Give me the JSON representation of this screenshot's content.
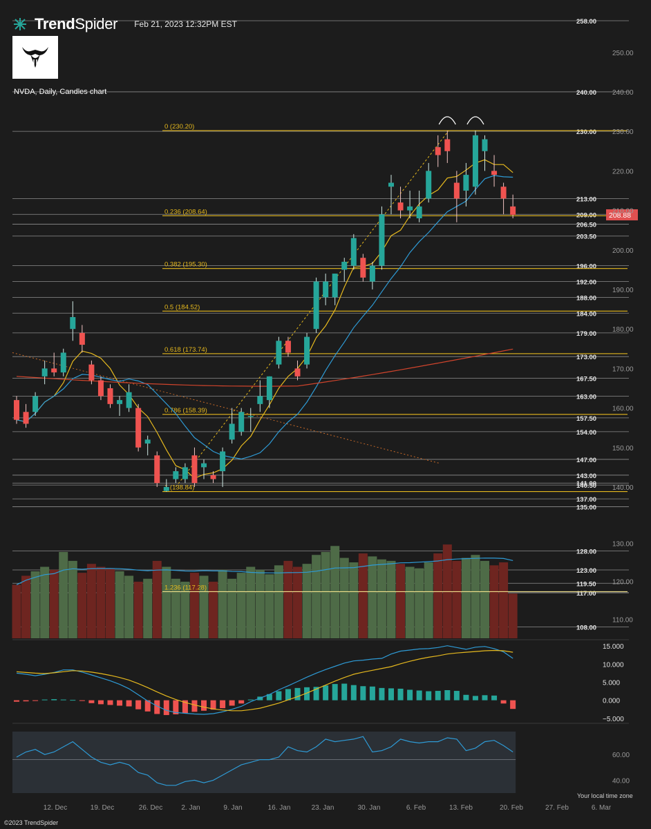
{
  "header": {
    "brand_bold": "Trend",
    "brand_light": "Spider",
    "timestamp": "Feb 21, 2023 12:32PM EST",
    "symbol_line": "NVDA, Daily, Candles chart",
    "copyright": "©2023 TrendSpider",
    "timezone_note": "Your local time zone"
  },
  "colors": {
    "background": "#1c1c1c",
    "up": "#26a69a",
    "down": "#ef5350",
    "fib": "#e6b91e",
    "sma_fast": "#e6b91e",
    "sma_mid": "#2e9bd6",
    "sma_slow": "#d0442c",
    "level": "#8e8e8e",
    "vol_up": "#4e6b47",
    "vol_down": "#6e2520",
    "last_price": "#e05050"
  },
  "chart_data": {
    "type": "candlestick",
    "symbol": "NVDA",
    "interval": "Daily",
    "ylim": [
      133,
      258
    ],
    "y_ticks": [
      "140.00",
      "150.00",
      "160.00",
      "170.00",
      "180.00",
      "190.00",
      "200.00",
      "210.00",
      "220.00",
      "230.00",
      "240.00",
      "250.00"
    ],
    "x_ticks": [
      "12. Dec",
      "19. Dec",
      "26. Dec",
      "2. Jan",
      "9. Jan",
      "16. Jan",
      "23. Jan",
      "30. Jan",
      "6. Feb",
      "13. Feb",
      "20. Feb",
      "27. Feb",
      "6. Mar"
    ],
    "candles": [
      {
        "date": "2022-12-05",
        "o": 162,
        "h": 163,
        "l": 156,
        "c": 157
      },
      {
        "date": "2022-12-06",
        "o": 159,
        "h": 161,
        "l": 155,
        "c": 156
      },
      {
        "date": "2022-12-07",
        "o": 159,
        "h": 164,
        "l": 158,
        "c": 163
      },
      {
        "date": "2022-12-08",
        "o": 168,
        "h": 172,
        "l": 166,
        "c": 170
      },
      {
        "date": "2022-12-09",
        "o": 170,
        "h": 174,
        "l": 168,
        "c": 169
      },
      {
        "date": "2022-12-12",
        "o": 169,
        "h": 175,
        "l": 168,
        "c": 174
      },
      {
        "date": "2022-12-13",
        "o": 180,
        "h": 187,
        "l": 177,
        "c": 183
      },
      {
        "date": "2022-12-14",
        "o": 179,
        "h": 181,
        "l": 174,
        "c": 176
      },
      {
        "date": "2022-12-15",
        "o": 171,
        "h": 172,
        "l": 166,
        "c": 167
      },
      {
        "date": "2022-12-16",
        "o": 167,
        "h": 168,
        "l": 162,
        "c": 163
      },
      {
        "date": "2022-12-19",
        "o": 165,
        "h": 166,
        "l": 160,
        "c": 161
      },
      {
        "date": "2022-12-20",
        "o": 161,
        "h": 163,
        "l": 158,
        "c": 162
      },
      {
        "date": "2022-12-21",
        "o": 160,
        "h": 166,
        "l": 159,
        "c": 164
      },
      {
        "date": "2022-12-22",
        "o": 160,
        "h": 161,
        "l": 149,
        "c": 150
      },
      {
        "date": "2022-12-23",
        "o": 151,
        "h": 153,
        "l": 148,
        "c": 152
      },
      {
        "date": "2022-12-27",
        "o": 148,
        "h": 149,
        "l": 140,
        "c": 141
      },
      {
        "date": "2022-12-28",
        "o": 139,
        "h": 142,
        "l": 138.8,
        "c": 140
      },
      {
        "date": "2022-12-29",
        "o": 142,
        "h": 145,
        "l": 141,
        "c": 144
      },
      {
        "date": "2022-12-30",
        "o": 142,
        "h": 146,
        "l": 141,
        "c": 145
      },
      {
        "date": "2023-01-03",
        "o": 148,
        "h": 150,
        "l": 140,
        "c": 141
      },
      {
        "date": "2023-01-04",
        "o": 145,
        "h": 147,
        "l": 142,
        "c": 146
      },
      {
        "date": "2023-01-05",
        "o": 143,
        "h": 144,
        "l": 141,
        "c": 142
      },
      {
        "date": "2023-01-06",
        "o": 144,
        "h": 150,
        "l": 140,
        "c": 149
      },
      {
        "date": "2023-01-09",
        "o": 152,
        "h": 160,
        "l": 151,
        "c": 156
      },
      {
        "date": "2023-01-10",
        "o": 154,
        "h": 160,
        "l": 153,
        "c": 159
      },
      {
        "date": "2023-01-11",
        "o": 158,
        "h": 160,
        "l": 154,
        "c": 158
      },
      {
        "date": "2023-01-12",
        "o": 161,
        "h": 167,
        "l": 159,
        "c": 163
      },
      {
        "date": "2023-01-13",
        "o": 162,
        "h": 168,
        "l": 160,
        "c": 168
      },
      {
        "date": "2023-01-17",
        "o": 171,
        "h": 178,
        "l": 170,
        "c": 177
      },
      {
        "date": "2023-01-18",
        "o": 177,
        "h": 178,
        "l": 173,
        "c": 174
      },
      {
        "date": "2023-01-19",
        "o": 170,
        "h": 172,
        "l": 167,
        "c": 168
      },
      {
        "date": "2023-01-20",
        "o": 171,
        "h": 179,
        "l": 170,
        "c": 178
      },
      {
        "date": "2023-01-23",
        "o": 180,
        "h": 193,
        "l": 179,
        "c": 192
      },
      {
        "date": "2023-01-24",
        "o": 188,
        "h": 194,
        "l": 186,
        "c": 192
      },
      {
        "date": "2023-01-25",
        "o": 188,
        "h": 194,
        "l": 186,
        "c": 194
      },
      {
        "date": "2023-01-26",
        "o": 195,
        "h": 198,
        "l": 192,
        "c": 197
      },
      {
        "date": "2023-01-27",
        "o": 196,
        "h": 204,
        "l": 195,
        "c": 203
      },
      {
        "date": "2023-01-30",
        "o": 198,
        "h": 199,
        "l": 192,
        "c": 193
      },
      {
        "date": "2023-01-31",
        "o": 192,
        "h": 197,
        "l": 190,
        "c": 196
      },
      {
        "date": "2023-02-01",
        "o": 196,
        "h": 211,
        "l": 195,
        "c": 209
      },
      {
        "date": "2023-02-02",
        "o": 216,
        "h": 219,
        "l": 209,
        "c": 217
      },
      {
        "date": "2023-02-03",
        "o": 212,
        "h": 216,
        "l": 208,
        "c": 210
      },
      {
        "date": "2023-02-06",
        "o": 210,
        "h": 215,
        "l": 208,
        "c": 211
      },
      {
        "date": "2023-02-07",
        "o": 208,
        "h": 215,
        "l": 207,
        "c": 211
      },
      {
        "date": "2023-02-08",
        "o": 213,
        "h": 222,
        "l": 212,
        "c": 220
      },
      {
        "date": "2023-02-09",
        "o": 226,
        "h": 229,
        "l": 221,
        "c": 224
      },
      {
        "date": "2023-02-10",
        "o": 228,
        "h": 230.2,
        "l": 222,
        "c": 225
      },
      {
        "date": "2023-02-13",
        "o": 217,
        "h": 220,
        "l": 207,
        "c": 213
      },
      {
        "date": "2023-02-14",
        "o": 215,
        "h": 222,
        "l": 211,
        "c": 219
      },
      {
        "date": "2023-02-15",
        "o": 216,
        "h": 230.2,
        "l": 214,
        "c": 229
      },
      {
        "date": "2023-02-16",
        "o": 225,
        "h": 229,
        "l": 220,
        "c": 228
      },
      {
        "date": "2023-02-17",
        "o": 220,
        "h": 224,
        "l": 216,
        "c": 219
      },
      {
        "date": "2023-02-21",
        "o": 216,
        "h": 217,
        "l": 209,
        "c": 213
      },
      {
        "date": "2023-02-22",
        "o": 211,
        "h": 214,
        "l": 208,
        "c": 208.88
      }
    ],
    "last_price": "208.88",
    "fib_levels": [
      {
        "label": "0 (230.20)",
        "value": 230.2
      },
      {
        "label": "0.236 (208.64)",
        "value": 208.64
      },
      {
        "label": "0.382 (195.30)",
        "value": 195.3
      },
      {
        "label": "0.5 (184.52)",
        "value": 184.52
      },
      {
        "label": "0.618 (173.74)",
        "value": 173.74
      },
      {
        "label": "0.786 (158.39)",
        "value": 158.39
      },
      {
        "label": "1 (138.84)",
        "value": 138.84
      },
      {
        "label": "1.236 (117.28)",
        "value": 117.28,
        "pane": "volume"
      }
    ],
    "horizontal_levels": [
      {
        "label": "258.00",
        "value": 258
      },
      {
        "label": "240.00",
        "value": 240
      },
      {
        "label": "230.00",
        "value": 230
      },
      {
        "label": "213.00",
        "value": 213
      },
      {
        "label": "209.00",
        "value": 209
      },
      {
        "label": "206.50",
        "value": 206.5
      },
      {
        "label": "203.50",
        "value": 203.5
      },
      {
        "label": "196.00",
        "value": 196
      },
      {
        "label": "192.00",
        "value": 192
      },
      {
        "label": "188.00",
        "value": 188
      },
      {
        "label": "184.00",
        "value": 184
      },
      {
        "label": "179.00",
        "value": 179
      },
      {
        "label": "173.00",
        "value": 173
      },
      {
        "label": "167.50",
        "value": 167.5
      },
      {
        "label": "163.00",
        "value": 163
      },
      {
        "label": "157.50",
        "value": 157.5
      },
      {
        "label": "154.00",
        "value": 154
      },
      {
        "label": "147.00",
        "value": 147
      },
      {
        "label": "143.00",
        "value": 143
      },
      {
        "label": "141.00",
        "value": 141
      },
      {
        "label": "140.50",
        "value": 140.5
      },
      {
        "label": "137.00",
        "value": 137
      },
      {
        "label": "135.00",
        "value": 135
      }
    ],
    "volume_pane": {
      "ylim": [
        105,
        133
      ],
      "y_ticks": [
        "110.00",
        "120.00",
        "130.00"
      ],
      "levels": [
        {
          "label": "128.00",
          "value": 128
        },
        {
          "label": "123.00",
          "value": 123
        },
        {
          "label": "119.50",
          "value": 119.5
        },
        {
          "label": "117.00",
          "value": 117
        },
        {
          "label": "108.00",
          "value": 108
        }
      ],
      "volumes": [
        36,
        42,
        45,
        48,
        46,
        58,
        52,
        44,
        50,
        48,
        47,
        45,
        42,
        38,
        40,
        52,
        48,
        40,
        38,
        44,
        42,
        38,
        46,
        40,
        44,
        48,
        46,
        43,
        49,
        52,
        48,
        50,
        56,
        58,
        62,
        54,
        51,
        57,
        55,
        53,
        52,
        50,
        48,
        47,
        51,
        57,
        63,
        52,
        54,
        56,
        52,
        49,
        51,
        30
      ]
    },
    "macd_pane": {
      "ylim": [
        -6,
        16
      ],
      "y_ticks": [
        "15.000",
        "10.000",
        "5.000",
        "0.000",
        "−5.000"
      ],
      "histogram": [
        -0.4,
        -0.3,
        -0.2,
        0.2,
        0.3,
        0.2,
        0.1,
        -0.2,
        -0.8,
        -1.1,
        -1.3,
        -1.5,
        -1.7,
        -2.5,
        -3.1,
        -3.8,
        -4.1,
        -3.9,
        -3.6,
        -3.2,
        -2.9,
        -2.6,
        -2.2,
        -1.5,
        -0.9,
        0.2,
        1.0,
        1.7,
        2.5,
        3.1,
        3.4,
        3.6,
        3.7,
        4.1,
        4.5,
        4.6,
        4.2,
        3.9,
        3.8,
        3.4,
        3.3,
        3.2,
        2.9,
        2.7,
        2.5,
        2.6,
        2.8,
        2.6,
        1.5,
        1.2,
        1.4,
        1.3,
        -0.9,
        -2.4
      ],
      "macd": [
        7.5,
        7.2,
        6.8,
        7.2,
        7.7,
        8.4,
        8.4,
        7.8,
        7.0,
        6.2,
        5.4,
        4.4,
        3.2,
        1.5,
        -0.2,
        -1.6,
        -2.8,
        -3.4,
        -3.6,
        -3.8,
        -3.9,
        -3.7,
        -3.2,
        -2.5,
        -1.7,
        -0.4,
        0.6,
        1.6,
        2.9,
        4.0,
        5.2,
        6.4,
        7.5,
        8.5,
        9.4,
        10.3,
        10.9,
        11.1,
        11.4,
        11.6,
        12.8,
        13.6,
        13.9,
        14.2,
        14.3,
        14.6,
        15.1,
        14.6,
        14.1,
        14.7,
        14.9,
        14.3,
        13.4,
        11.6
      ],
      "signal": [
        7.9,
        7.7,
        7.5,
        7.4,
        7.6,
        7.9,
        8.2,
        8.1,
        7.8,
        7.4,
        6.9,
        6.3,
        5.6,
        4.6,
        3.5,
        2.3,
        1.2,
        0.2,
        -0.6,
        -1.3,
        -1.9,
        -2.4,
        -2.7,
        -2.9,
        -2.9,
        -2.6,
        -2.2,
        -1.5,
        -0.8,
        0.1,
        1.0,
        2.0,
        3.1,
        4.2,
        5.3,
        6.3,
        7.2,
        7.8,
        8.3,
        8.8,
        9.3,
        10.1,
        10.8,
        11.4,
        11.9,
        12.3,
        12.8,
        13.1,
        13.3,
        13.5,
        13.7,
        13.8,
        13.7,
        13.3
      ]
    },
    "rsi_pane": {
      "ylim": [
        30,
        80
      ],
      "y_ticks": [
        "40.00",
        "60.00"
      ],
      "values": [
        58,
        62,
        64,
        60,
        62,
        66,
        70,
        64,
        58,
        54,
        52,
        54,
        52,
        46,
        44,
        38,
        36,
        36,
        39,
        40,
        38,
        40,
        44,
        48,
        52,
        54,
        56,
        56,
        58,
        66,
        63,
        62,
        66,
        72,
        70,
        71,
        72,
        74,
        62,
        63,
        66,
        72,
        70,
        69,
        70,
        70,
        73,
        72,
        63,
        65,
        70,
        71,
        67,
        62
      ]
    }
  }
}
